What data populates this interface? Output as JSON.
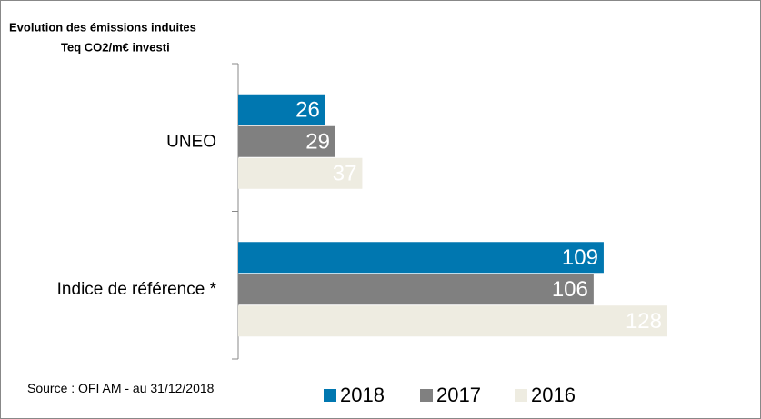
{
  "chart_data": {
    "type": "bar",
    "orientation": "horizontal",
    "title": "Evolution des émissions induites",
    "subtitle": "Teq CO2/m€ investi",
    "categories": [
      "UNEO",
      "Indice de référence *"
    ],
    "series": [
      {
        "name": "2018",
        "color": "#0077b0",
        "values": [
          26,
          109
        ]
      },
      {
        "name": "2017",
        "color": "#808080",
        "values": [
          29,
          106
        ]
      },
      {
        "name": "2016",
        "color": "#eeece1",
        "values": [
          37,
          128
        ]
      }
    ],
    "source": "Source : OFI AM - au 31/12/2018"
  }
}
